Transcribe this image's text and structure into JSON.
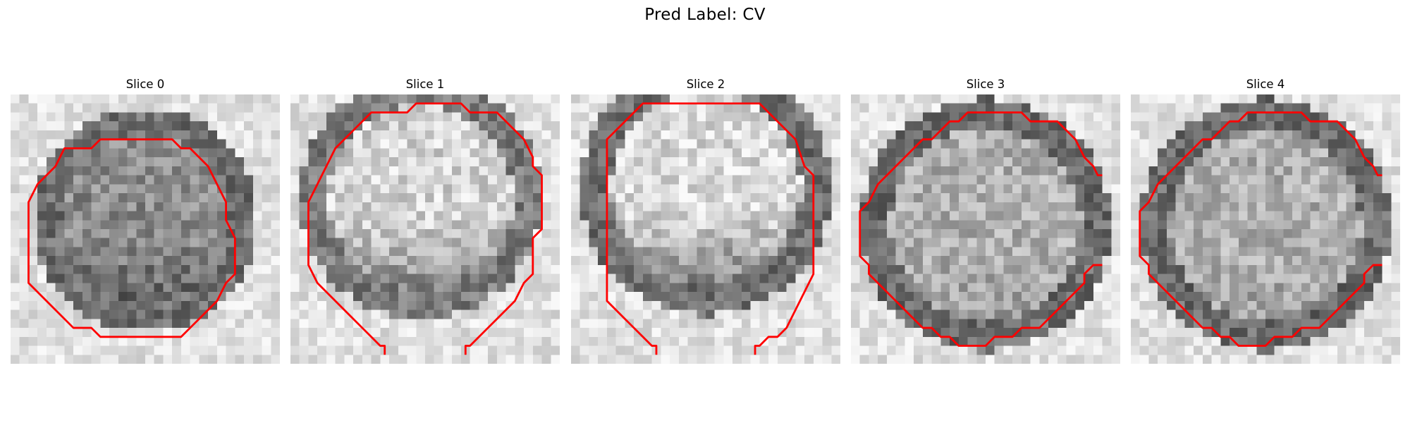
{
  "figure": {
    "title": "Pred Label: CV",
    "panels": [
      {
        "title": "Slice 0"
      },
      {
        "title": "Slice 1"
      },
      {
        "title": "Slice 2"
      },
      {
        "title": "Slice 3"
      },
      {
        "title": "Slice 4"
      }
    ],
    "colors": {
      "contour": "#ff0000",
      "colormap": "gray"
    }
  }
}
